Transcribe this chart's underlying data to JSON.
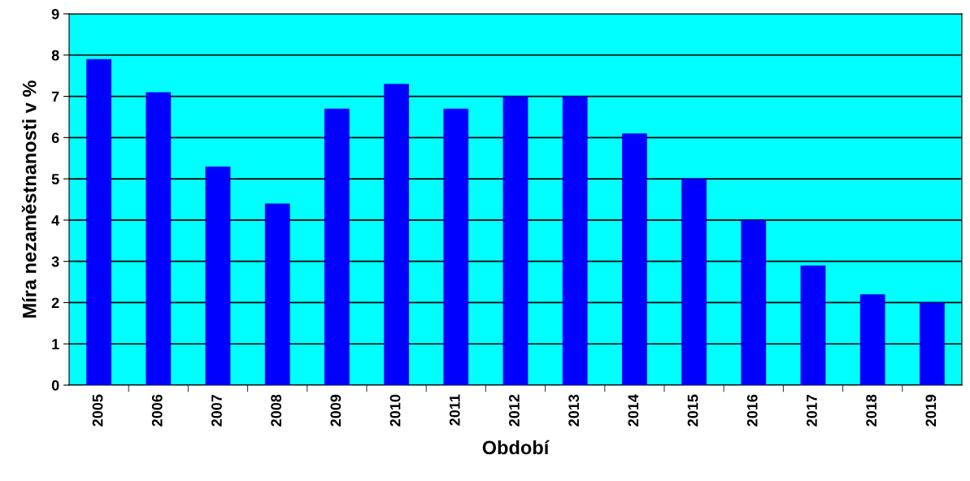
{
  "chart_data": {
    "type": "bar",
    "xlabel": "Období",
    "ylabel": "Míra nezaměstnanosti v %",
    "categories": [
      "2005",
      "2006",
      "2007",
      "2008",
      "2009",
      "2010",
      "2011",
      "2012",
      "2013",
      "2014",
      "2015",
      "2016",
      "2017",
      "2018",
      "2019"
    ],
    "values": [
      7.9,
      7.1,
      5.3,
      4.4,
      6.7,
      7.3,
      6.7,
      7.0,
      7.0,
      6.1,
      5.0,
      4.0,
      2.9,
      2.2,
      2.0
    ],
    "color": "#0000ff",
    "ylim": [
      0,
      9
    ],
    "yticks": [
      0,
      1,
      2,
      3,
      4,
      5,
      6,
      7,
      8,
      9
    ],
    "grid": "y"
  }
}
